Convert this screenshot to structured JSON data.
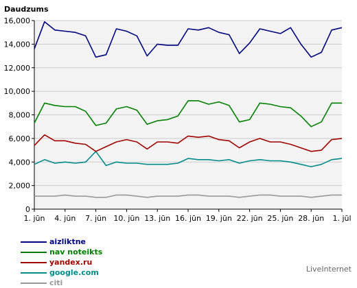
{
  "chart_data": {
    "type": "line",
    "title": "Daudzums",
    "xlabel": "",
    "ylabel": "",
    "x": [
      "1. jūn",
      "2. jūn",
      "3. jūn",
      "4. jūn",
      "5. jūn",
      "6. jūn",
      "7. jūn",
      "8. jūn",
      "9. jūn",
      "10. jūn",
      "11. jūn",
      "12. jūn",
      "13. jūn",
      "14. jūn",
      "15. jūn",
      "16. jūn",
      "17. jūn",
      "18. jūn",
      "19. jūn",
      "20. jūn",
      "21. jūn",
      "22. jūn",
      "23. jūn",
      "24. jūn",
      "25. jūn",
      "26. jūn",
      "27. jūn",
      "28. jūn",
      "29. jūn",
      "30. jūn",
      "1. jūl"
    ],
    "x_tick_labels": [
      "1. jūn",
      "4. jūn",
      "7. jūn",
      "10. jūn",
      "13. jūn",
      "16. jūn",
      "19. jūn",
      "22. jūn",
      "25. jūn",
      "28. jūn",
      "1. jūl"
    ],
    "ylim": [
      0,
      16000
    ],
    "y_ticks": [
      0,
      2000,
      4000,
      6000,
      8000,
      10000,
      12000,
      14000,
      16000
    ],
    "y_tick_labels": [
      "0",
      "2,000",
      "4,000",
      "6,000",
      "8,000",
      "10,000",
      "12,000",
      "14,000",
      "16,000"
    ],
    "grid": true,
    "legend_position": "bottom-left",
    "series": [
      {
        "name": "aizliktne",
        "color": "#000080",
        "values": [
          13600,
          15900,
          15200,
          15100,
          15000,
          14700,
          12900,
          13100,
          15300,
          15100,
          14700,
          13000,
          14000,
          13900,
          13900,
          15300,
          15200,
          15400,
          15000,
          14800,
          13200,
          14100,
          15300,
          15100,
          14900,
          15400,
          14000,
          12900,
          13300,
          15200,
          15400
        ]
      },
      {
        "name": "nav noteikts",
        "color": "#008000",
        "values": [
          7300,
          9000,
          8800,
          8700,
          8700,
          8300,
          7100,
          7300,
          8500,
          8700,
          8400,
          7200,
          7500,
          7600,
          7900,
          9200,
          9200,
          8900,
          9100,
          8800,
          7400,
          7600,
          9000,
          8900,
          8700,
          8600,
          7900,
          7000,
          7400,
          9000,
          9000
        ]
      },
      {
        "name": "yandex.ru",
        "color": "#a00000",
        "values": [
          5400,
          6300,
          5800,
          5800,
          5600,
          5500,
          4900,
          5300,
          5700,
          5900,
          5700,
          5100,
          5700,
          5700,
          5600,
          6200,
          6100,
          6200,
          5900,
          5800,
          5200,
          5700,
          6000,
          5700,
          5700,
          5500,
          5200,
          4900,
          5000,
          5900,
          6000
        ]
      },
      {
        "name": "google.com",
        "color": "#008b8b",
        "values": [
          3800,
          4200,
          3900,
          4000,
          3900,
          4000,
          4900,
          3700,
          4000,
          3900,
          3900,
          3800,
          3800,
          3800,
          3900,
          4300,
          4200,
          4200,
          4100,
          4200,
          3900,
          4100,
          4200,
          4100,
          4100,
          4000,
          3800,
          3600,
          3800,
          4200,
          4300
        ]
      },
      {
        "name": "citi",
        "color": "#999999",
        "values": [
          1100,
          1100,
          1100,
          1200,
          1100,
          1100,
          1000,
          1000,
          1200,
          1200,
          1100,
          1000,
          1100,
          1100,
          1100,
          1200,
          1200,
          1100,
          1100,
          1100,
          1000,
          1100,
          1200,
          1200,
          1100,
          1100,
          1100,
          1000,
          1100,
          1200,
          1200
        ]
      }
    ]
  },
  "brand": "LiveInternet"
}
